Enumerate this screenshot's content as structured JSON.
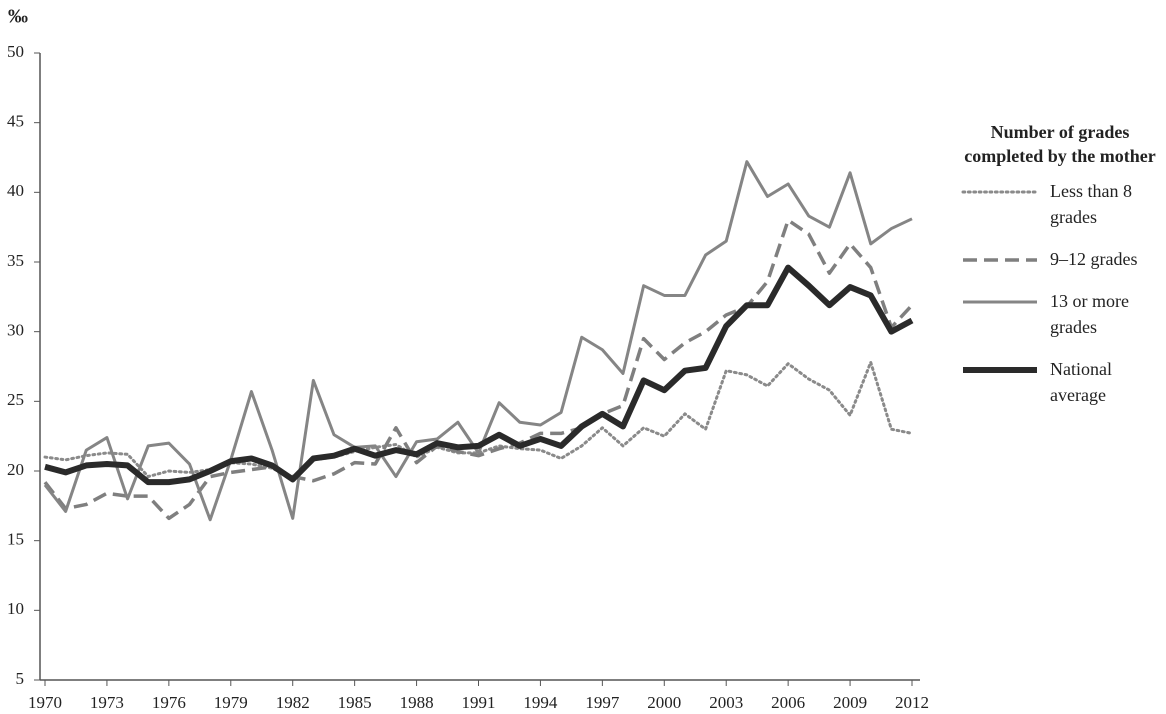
{
  "chart_data": {
    "type": "line",
    "y_label": "‰",
    "legend_title": "Number of grades completed by the mother",
    "legend": "right",
    "x": [
      1970,
      1971,
      1972,
      1973,
      1974,
      1975,
      1976,
      1977,
      1978,
      1979,
      1980,
      1981,
      1982,
      1983,
      1984,
      1985,
      1986,
      1987,
      1988,
      1989,
      1990,
      1991,
      1992,
      1993,
      1994,
      1995,
      1996,
      1997,
      1998,
      1999,
      2000,
      2001,
      2002,
      2003,
      2004,
      2005,
      2006,
      2007,
      2008,
      2009,
      2010,
      2011,
      2012
    ],
    "xlim": [
      1970,
      2012
    ],
    "xticks": [
      1970,
      1973,
      1976,
      1979,
      1982,
      1985,
      1988,
      1991,
      1994,
      1997,
      2000,
      2003,
      2006,
      2009,
      2012
    ],
    "ylim": [
      5,
      50
    ],
    "yticks": [
      5,
      10,
      15,
      20,
      25,
      30,
      35,
      40,
      45,
      50
    ],
    "series": [
      {
        "name": "Less than 8 grades",
        "color": "#8a8a8a",
        "style": "dotted",
        "width": 3,
        "values": [
          21.0,
          20.8,
          21.1,
          21.3,
          21.2,
          19.6,
          20.0,
          19.9,
          20.1,
          20.6,
          20.5,
          20.2,
          19.5,
          20.8,
          21.0,
          21.4,
          21.7,
          21.9,
          21.0,
          21.7,
          21.3,
          21.3,
          21.8,
          21.6,
          21.5,
          20.9,
          21.8,
          23.1,
          21.8,
          23.1,
          22.5,
          24.1,
          23.0,
          27.2,
          26.9,
          26.1,
          27.7,
          26.6,
          25.8,
          24.0,
          27.8,
          23.0,
          22.7
        ]
      },
      {
        "name": "9–12 grades",
        "color": "#7f7f7f",
        "style": "dashed",
        "width": 3.5,
        "values": [
          19.2,
          17.3,
          17.6,
          18.4,
          18.2,
          18.2,
          16.6,
          17.6,
          19.6,
          19.9,
          20.1,
          20.3,
          19.6,
          19.3,
          19.8,
          20.6,
          20.5,
          23.1,
          20.6,
          21.8,
          21.4,
          21.1,
          21.6,
          22.0,
          22.7,
          22.7,
          23.1,
          24.1,
          24.7,
          29.5,
          28.0,
          29.2,
          30.0,
          31.2,
          31.8,
          33.6,
          38.0,
          37.0,
          34.2,
          36.3,
          34.6,
          30.3,
          31.9
        ]
      },
      {
        "name": "13 or more grades",
        "color": "#858585",
        "style": "solid",
        "width": 3,
        "values": [
          19.0,
          17.1,
          21.5,
          22.4,
          18.0,
          21.8,
          22.0,
          20.5,
          16.5,
          20.8,
          25.7,
          21.5,
          16.6,
          26.5,
          22.6,
          21.7,
          21.8,
          19.6,
          22.1,
          22.3,
          23.5,
          21.3,
          24.9,
          23.5,
          23.3,
          24.2,
          29.6,
          28.7,
          27.0,
          33.3,
          32.6,
          32.6,
          35.5,
          36.5,
          42.2,
          39.7,
          40.6,
          38.3,
          37.5,
          41.4,
          36.3,
          37.4,
          38.1
        ]
      },
      {
        "name": "National average",
        "color": "#2a2a2a",
        "style": "solid",
        "width": 6,
        "values": [
          20.3,
          19.9,
          20.4,
          20.5,
          20.4,
          19.2,
          19.2,
          19.4,
          20.0,
          20.7,
          20.9,
          20.4,
          19.4,
          20.9,
          21.1,
          21.6,
          21.1,
          21.5,
          21.2,
          22.0,
          21.7,
          21.8,
          22.6,
          21.8,
          22.3,
          21.8,
          23.2,
          24.1,
          23.2,
          26.5,
          25.8,
          27.2,
          27.4,
          30.4,
          31.9,
          31.9,
          34.6,
          33.3,
          31.9,
          33.2,
          32.6,
          30.0,
          30.8
        ]
      }
    ]
  }
}
